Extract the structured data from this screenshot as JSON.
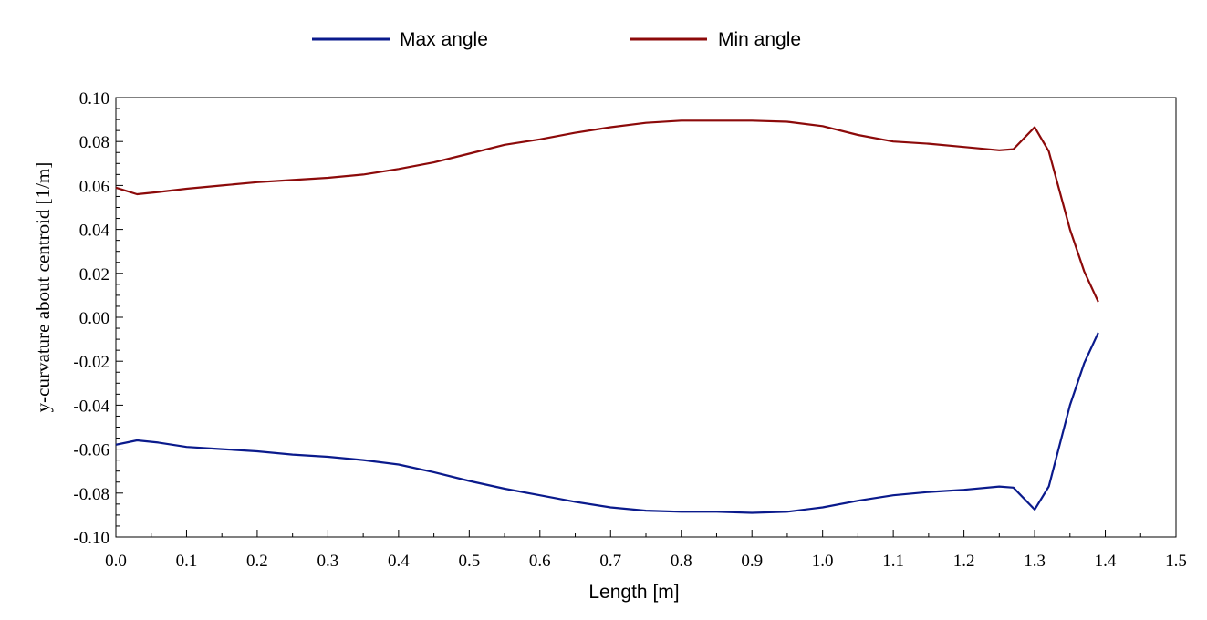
{
  "chart_data": {
    "type": "line",
    "title": "",
    "xlabel": "Length [m]",
    "ylabel": "y-curvature about centroid  [1/m]",
    "xlim": [
      0.0,
      1.5
    ],
    "ylim": [
      -0.1,
      0.1
    ],
    "x_ticks": [
      "0.0",
      "0.1",
      "0.2",
      "0.3",
      "0.4",
      "0.5",
      "0.6",
      "0.7",
      "0.8",
      "0.9",
      "1.0",
      "1.1",
      "1.2",
      "1.3",
      "1.4",
      "1.5"
    ],
    "y_ticks": [
      "0.10",
      "0.08",
      "0.06",
      "0.04",
      "0.02",
      "0.00",
      "-0.02",
      "-0.04",
      "-0.06",
      "-0.08",
      "-0.10"
    ],
    "x_tick_values": [
      0.0,
      0.1,
      0.2,
      0.3,
      0.4,
      0.5,
      0.6,
      0.7,
      0.8,
      0.9,
      1.0,
      1.1,
      1.2,
      1.3,
      1.4,
      1.5
    ],
    "y_tick_values": [
      0.1,
      0.08,
      0.06,
      0.04,
      0.02,
      0.0,
      -0.02,
      -0.04,
      -0.06,
      -0.08,
      -0.1
    ],
    "grid": false,
    "legend_position": "top",
    "series": [
      {
        "name": "Max angle",
        "color": "#0a1a8c",
        "x": [
          0.0,
          0.03,
          0.06,
          0.1,
          0.15,
          0.2,
          0.25,
          0.3,
          0.35,
          0.4,
          0.45,
          0.5,
          0.55,
          0.6,
          0.65,
          0.7,
          0.75,
          0.8,
          0.85,
          0.9,
          0.95,
          1.0,
          1.05,
          1.1,
          1.15,
          1.2,
          1.25,
          1.27,
          1.3,
          1.32,
          1.35,
          1.37,
          1.39
        ],
        "values": [
          -0.058,
          -0.056,
          -0.057,
          -0.059,
          -0.06,
          -0.061,
          -0.0625,
          -0.0635,
          -0.065,
          -0.067,
          -0.0705,
          -0.0745,
          -0.078,
          -0.081,
          -0.084,
          -0.0865,
          -0.088,
          -0.0885,
          -0.0885,
          -0.089,
          -0.0885,
          -0.0865,
          -0.0835,
          -0.081,
          -0.0795,
          -0.0785,
          -0.077,
          -0.0775,
          -0.0875,
          -0.077,
          -0.04,
          -0.021,
          -0.007
        ]
      },
      {
        "name": "Min angle",
        "color": "#8c0a0a",
        "x": [
          0.0,
          0.03,
          0.06,
          0.1,
          0.15,
          0.2,
          0.25,
          0.3,
          0.35,
          0.4,
          0.45,
          0.5,
          0.55,
          0.6,
          0.65,
          0.7,
          0.75,
          0.8,
          0.85,
          0.9,
          0.95,
          1.0,
          1.05,
          1.1,
          1.15,
          1.2,
          1.25,
          1.27,
          1.3,
          1.32,
          1.35,
          1.37,
          1.39
        ],
        "values": [
          0.059,
          0.056,
          0.057,
          0.0585,
          0.06,
          0.0615,
          0.0625,
          0.0635,
          0.065,
          0.0675,
          0.0705,
          0.0745,
          0.0785,
          0.081,
          0.084,
          0.0865,
          0.0885,
          0.0895,
          0.0895,
          0.0895,
          0.089,
          0.087,
          0.083,
          0.08,
          0.079,
          0.0775,
          0.076,
          0.0765,
          0.0865,
          0.0755,
          0.04,
          0.021,
          0.007
        ]
      }
    ]
  }
}
